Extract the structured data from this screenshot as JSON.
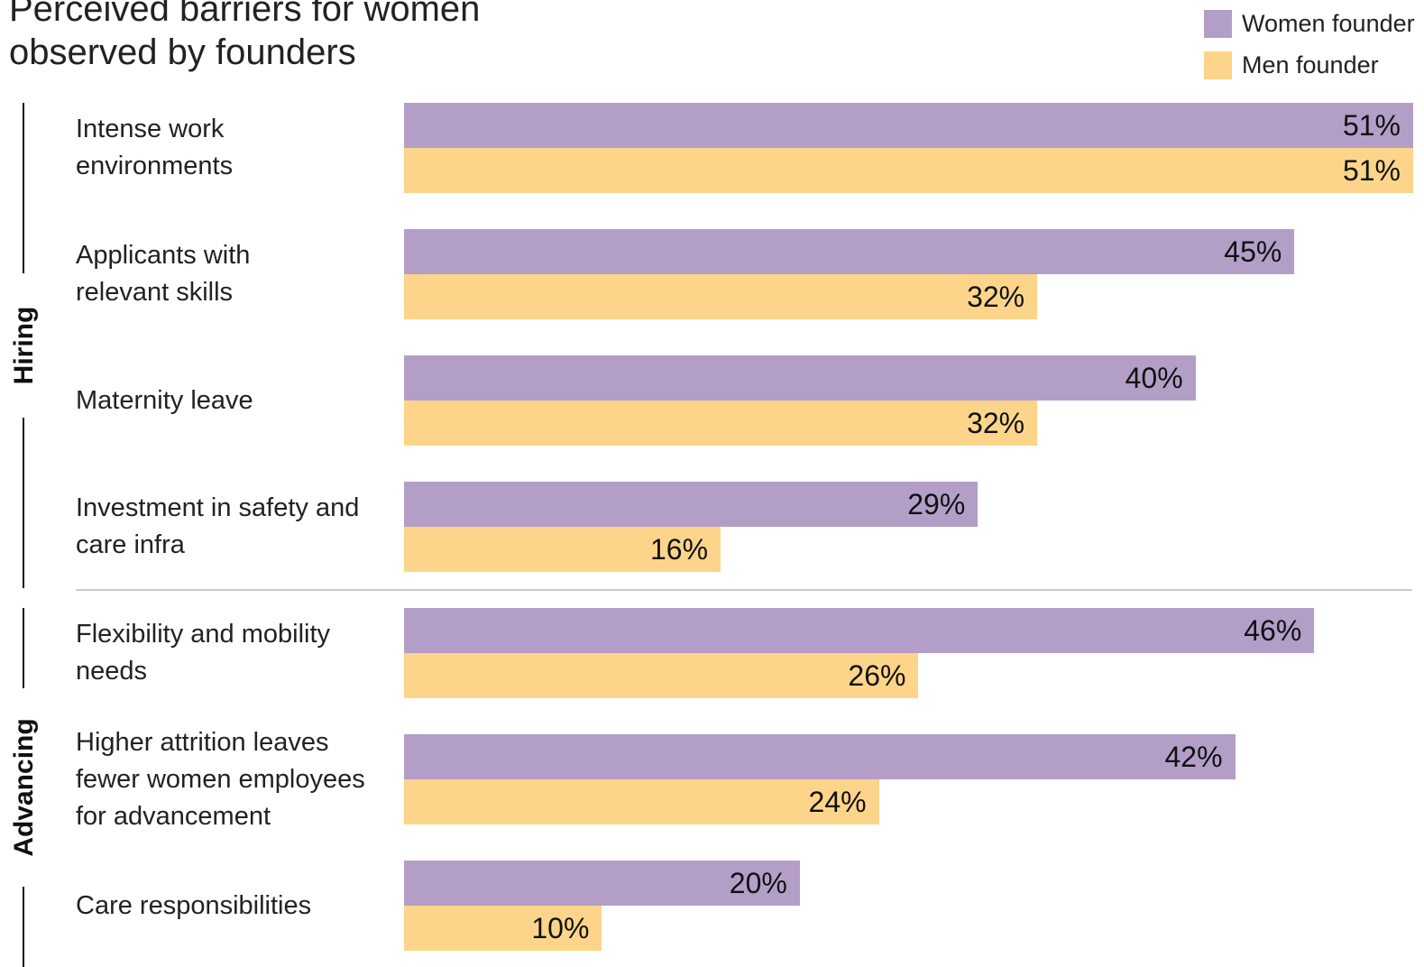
{
  "chart_data": {
    "type": "bar",
    "orientation": "horizontal",
    "title": "Perceived barriers for women\nobserved by founders",
    "categories": [
      "Intense work\nenvironments",
      "Applicants with\nrelevant skills",
      "Maternity leave",
      "Investment in safety and\ncare infra",
      "Flexibility and mobility\nneeds",
      "Higher attrition leaves\nfewer women employees\nfor advancement",
      "Care responsibilities"
    ],
    "groups": [
      {
        "name": "Hiring",
        "count": 4
      },
      {
        "name": "Advancing",
        "count": 3
      }
    ],
    "series": [
      {
        "name": "Women founder",
        "color": "#b39ec8",
        "values": [
          51,
          45,
          40,
          29,
          46,
          42,
          20
        ],
        "value_labels": [
          "51%",
          "45%",
          "40%",
          "29%",
          "46%",
          "42%",
          "20%"
        ]
      },
      {
        "name": "Men founder",
        "color": "#fdd58a",
        "values": [
          51,
          32,
          32,
          16,
          26,
          24,
          10
        ],
        "value_labels": [
          "51%",
          "32%",
          "32%",
          "16%",
          "26%",
          "24%",
          "10%"
        ]
      }
    ],
    "xlim": [
      0,
      51
    ],
    "legend": "top-right"
  }
}
